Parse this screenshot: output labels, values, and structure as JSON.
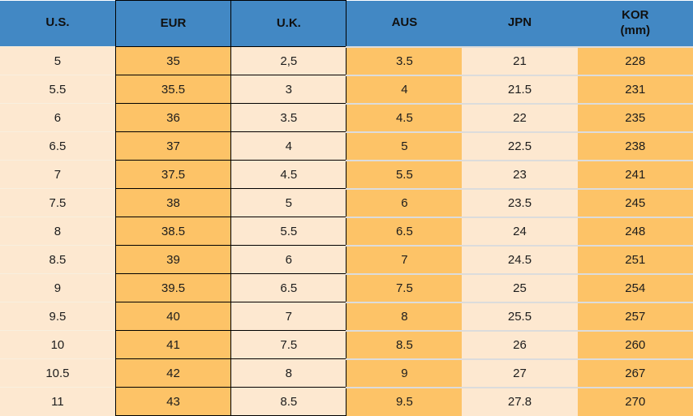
{
  "chart_data": {
    "type": "table",
    "columns": [
      {
        "key": "us",
        "label": "U.S."
      },
      {
        "key": "eur",
        "label": "EUR"
      },
      {
        "key": "uk",
        "label": "U.K."
      },
      {
        "key": "aus",
        "label": "AUS"
      },
      {
        "key": "jpn",
        "label": "JPN"
      },
      {
        "key": "kor",
        "label": "KOR",
        "label2": "(mm)"
      }
    ],
    "rows": [
      [
        "5",
        "35",
        "2,5",
        "3.5",
        "21",
        "228"
      ],
      [
        "5.5",
        "35.5",
        "3",
        "4",
        "21.5",
        "231"
      ],
      [
        "6",
        "36",
        "3.5",
        "4.5",
        "22",
        "235"
      ],
      [
        "6.5",
        "37",
        "4",
        "5",
        "22.5",
        "238"
      ],
      [
        "7",
        "37.5",
        "4.5",
        "5.5",
        "23",
        "241"
      ],
      [
        "7.5",
        "38",
        "5",
        "6",
        "23.5",
        "245"
      ],
      [
        "8",
        "38.5",
        "5.5",
        "6.5",
        "24",
        "248"
      ],
      [
        "8.5",
        "39",
        "6",
        "7",
        "24.5",
        "251"
      ],
      [
        "9",
        "39.5",
        "6.5",
        "7.5",
        "25",
        "254"
      ],
      [
        "9.5",
        "40",
        "7",
        "8",
        "25.5",
        "257"
      ],
      [
        "10",
        "41",
        "7.5",
        "8.5",
        "26",
        "260"
      ],
      [
        "10.5",
        "42",
        "8",
        "9",
        "27",
        "267"
      ],
      [
        "11",
        "43",
        "8.5",
        "9.5",
        "27.8",
        "270"
      ]
    ],
    "layout": {
      "legend": "none",
      "grid": "row-separators"
    }
  },
  "colors": {
    "header_bg": "#4288c4",
    "header_text": "#101010",
    "cell_orange": "#fdc367",
    "cell_cream": "#fde8d0",
    "border_black": "#000000",
    "row_separator_gray": "#dcdcdc",
    "row_separator_faint": "#f8efdf",
    "body_text": "#1c1c1c"
  }
}
